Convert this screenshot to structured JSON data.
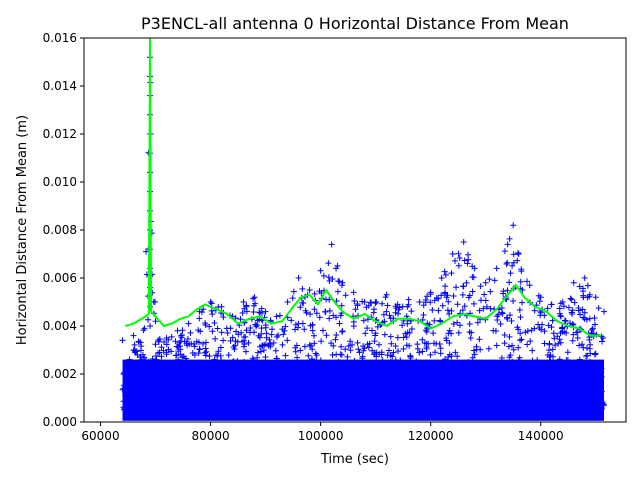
{
  "chart_data": {
    "type": "scatter",
    "title": "P3ENCL-all antenna 0 Horizontal Distance From Mean",
    "xlabel": "Time (sec)",
    "ylabel": "Horizontal Distance From Mean (m)",
    "xlim": [
      57000,
      155500
    ],
    "ylim": [
      0,
      0.016
    ],
    "xticks": [
      60000,
      80000,
      100000,
      120000,
      140000
    ],
    "xtick_labels": [
      "60000",
      "80000",
      "100000",
      "120000",
      "140000"
    ],
    "yticks": [
      0,
      0.002,
      0.004,
      0.006,
      0.008,
      0.01,
      0.012,
      0.014,
      0.016
    ],
    "ytick_labels": [
      "0.000",
      "0.002",
      "0.004",
      "0.006",
      "0.008",
      "0.010",
      "0.012",
      "0.014",
      "0.016"
    ],
    "grid": false,
    "series": [
      {
        "kind": "scatter-plus",
        "color": "#0000ff",
        "x_range": [
          64000,
          151500
        ],
        "points_max_envelope": {
          "x": [
            64000,
            66000,
            68000,
            69000,
            70000,
            72000,
            74000,
            76000,
            78000,
            80000,
            82000,
            84000,
            86000,
            88000,
            90000,
            92000,
            94000,
            96000,
            98000,
            100000,
            102000,
            104000,
            106000,
            108000,
            110000,
            112000,
            114000,
            116000,
            118000,
            120000,
            122000,
            124000,
            126000,
            128000,
            130000,
            132000,
            134000,
            135000,
            136000,
            138000,
            140000,
            142000,
            144000,
            146000,
            148000,
            150000,
            151500
          ],
          "y": [
            0.0034,
            0.0036,
            0.0039,
            0.016,
            0.0042,
            0.0035,
            0.0038,
            0.0041,
            0.0046,
            0.005,
            0.0048,
            0.0044,
            0.005,
            0.0052,
            0.0046,
            0.0044,
            0.005,
            0.006,
            0.0055,
            0.0063,
            0.0074,
            0.0058,
            0.0054,
            0.005,
            0.005,
            0.0053,
            0.0049,
            0.0051,
            0.005,
            0.0054,
            0.006,
            0.007,
            0.0075,
            0.0064,
            0.0058,
            0.0064,
            0.0074,
            0.0082,
            0.007,
            0.0057,
            0.0052,
            0.0049,
            0.005,
            0.0058,
            0.006,
            0.0052,
            0.0046
          ]
        }
      },
      {
        "kind": "line",
        "color": "#00ff00",
        "x": [
          64500,
          66000,
          67500,
          68800,
          69000,
          69200,
          70000,
          71500,
          73000,
          74500,
          76000,
          77500,
          79000,
          81000,
          83000,
          85000,
          87000,
          89000,
          91000,
          93000,
          95000,
          96500,
          98000,
          99500,
          101000,
          102500,
          104000,
          106000,
          108000,
          110000,
          112000,
          114000,
          116000,
          118000,
          120000,
          122000,
          124000,
          126000,
          128000,
          130000,
          132000,
          134000,
          135500,
          137000,
          139000,
          141000,
          143000,
          145000,
          147000,
          149000,
          151000
        ],
        "y": [
          0.004,
          0.0041,
          0.0043,
          0.0045,
          0.016,
          0.0046,
          0.0044,
          0.004,
          0.0041,
          0.0043,
          0.0044,
          0.0047,
          0.0049,
          0.0047,
          0.0045,
          0.0041,
          0.0043,
          0.0044,
          0.0041,
          0.0042,
          0.0048,
          0.0052,
          0.0053,
          0.0049,
          0.0055,
          0.005,
          0.0046,
          0.0043,
          0.0045,
          0.0042,
          0.004,
          0.0043,
          0.0043,
          0.0042,
          0.0039,
          0.0041,
          0.0044,
          0.0045,
          0.0044,
          0.0043,
          0.0047,
          0.0053,
          0.0057,
          0.0052,
          0.0048,
          0.0046,
          0.0042,
          0.004,
          0.0039,
          0.0036,
          0.0036
        ]
      }
    ]
  }
}
